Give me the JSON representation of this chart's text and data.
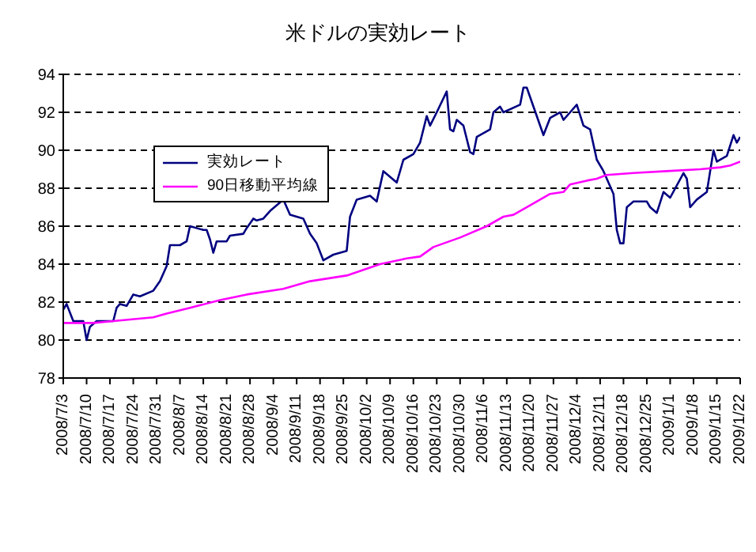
{
  "chart_data": {
    "type": "line",
    "title": "米ドルの実効レート",
    "ylim": [
      78,
      94
    ],
    "yticks": [
      78,
      80,
      82,
      84,
      86,
      88,
      90,
      92,
      94
    ],
    "xlim": [
      "2008-07-03",
      "2009-01-22"
    ],
    "xticks": [
      {
        "value": "2008-07-03",
        "label": "2008/7/3"
      },
      {
        "value": "2008-07-10",
        "label": "2008/7/10"
      },
      {
        "value": "2008-07-17",
        "label": "2008/7/17"
      },
      {
        "value": "2008-07-24",
        "label": "2008/7/24"
      },
      {
        "value": "2008-07-31",
        "label": "2008/7/31"
      },
      {
        "value": "2008-08-07",
        "label": "2008/8/7"
      },
      {
        "value": "2008-08-14",
        "label": "2008/8/14"
      },
      {
        "value": "2008-08-21",
        "label": "2008/8/21"
      },
      {
        "value": "2008-08-28",
        "label": "2008/8/28"
      },
      {
        "value": "2008-09-04",
        "label": "2008/9/4"
      },
      {
        "value": "2008-09-11",
        "label": "2008/9/11"
      },
      {
        "value": "2008-09-18",
        "label": "2008/9/18"
      },
      {
        "value": "2008-09-25",
        "label": "2008/9/25"
      },
      {
        "value": "2008-10-02",
        "label": "2008/10/2"
      },
      {
        "value": "2008-10-09",
        "label": "2008/10/9"
      },
      {
        "value": "2008-10-16",
        "label": "2008/10/16"
      },
      {
        "value": "2008-10-23",
        "label": "2008/10/23"
      },
      {
        "value": "2008-10-30",
        "label": "2008/10/30"
      },
      {
        "value": "2008-11-06",
        "label": "2008/11/6"
      },
      {
        "value": "2008-11-13",
        "label": "2008/11/13"
      },
      {
        "value": "2008-11-20",
        "label": "2008/11/20"
      },
      {
        "value": "2008-11-27",
        "label": "2008/11/27"
      },
      {
        "value": "2008-12-04",
        "label": "2008/12/4"
      },
      {
        "value": "2008-12-11",
        "label": "2008/12/11"
      },
      {
        "value": "2008-12-18",
        "label": "2008/12/18"
      },
      {
        "value": "2008-12-25",
        "label": "2008/12/25"
      },
      {
        "value": "2009-01-01",
        "label": "2009/1/1"
      },
      {
        "value": "2009-01-08",
        "label": "2009/1/8"
      },
      {
        "value": "2009-01-15",
        "label": "2009/1/15"
      },
      {
        "value": "2009-01-22",
        "label": "2009/1/22"
      }
    ],
    "grid": "y",
    "legend": "top left",
    "marker": "none",
    "line_style": "solid",
    "series": [
      {
        "name": "実効レート",
        "color": "#000080",
        "x": [
          "2008-07-03",
          "2008-07-04",
          "2008-07-06",
          "2008-07-09",
          "2008-07-10",
          "2008-07-11",
          "2008-07-13",
          "2008-07-18",
          "2008-07-19",
          "2008-07-20",
          "2008-07-22",
          "2008-07-24",
          "2008-07-26",
          "2008-07-30",
          "2008-08-01",
          "2008-08-03",
          "2008-08-04",
          "2008-08-07",
          "2008-08-09",
          "2008-08-10",
          "2008-08-14",
          "2008-08-15",
          "2008-08-16",
          "2008-08-17",
          "2008-08-18",
          "2008-08-21",
          "2008-08-22",
          "2008-08-26",
          "2008-08-27",
          "2008-08-29",
          "2008-08-30",
          "2008-09-01",
          "2008-09-03",
          "2008-09-07",
          "2008-09-09",
          "2008-09-13",
          "2008-09-15",
          "2008-09-17",
          "2008-09-19",
          "2008-09-22",
          "2008-09-26",
          "2008-09-27",
          "2008-09-29",
          "2008-10-03",
          "2008-10-05",
          "2008-10-07",
          "2008-10-11",
          "2008-10-13",
          "2008-10-16",
          "2008-10-18",
          "2008-10-20",
          "2008-10-21",
          "2008-10-23",
          "2008-10-26",
          "2008-10-27",
          "2008-10-28",
          "2008-10-29",
          "2008-10-31",
          "2008-11-02",
          "2008-11-03",
          "2008-11-04",
          "2008-11-08",
          "2008-11-09",
          "2008-11-11",
          "2008-11-12",
          "2008-11-17",
          "2008-11-18",
          "2008-11-19",
          "2008-11-21",
          "2008-11-24",
          "2008-11-26",
          "2008-11-29",
          "2008-11-30",
          "2008-12-02",
          "2008-12-04",
          "2008-12-06",
          "2008-12-08",
          "2008-12-10",
          "2008-12-12",
          "2008-12-15",
          "2008-12-16",
          "2008-12-17",
          "2008-12-18",
          "2008-12-19",
          "2008-12-21",
          "2008-12-25",
          "2008-12-26",
          "2008-12-28",
          "2008-12-30",
          "2009-01-01",
          "2009-01-05",
          "2009-01-06",
          "2009-01-07",
          "2009-01-09",
          "2009-01-12",
          "2009-01-13",
          "2009-01-14",
          "2009-01-15",
          "2009-01-18",
          "2009-01-20",
          "2009-01-21",
          "2009-01-22"
        ],
        "values": [
          81.6,
          81.9,
          81.0,
          81.0,
          80.0,
          80.7,
          81.0,
          81.0,
          81.7,
          81.9,
          81.8,
          82.4,
          82.3,
          82.6,
          83.1,
          83.9,
          85.0,
          85.0,
          85.2,
          86.0,
          85.8,
          85.8,
          85.3,
          84.6,
          85.2,
          85.2,
          85.5,
          85.6,
          85.9,
          86.4,
          86.3,
          86.4,
          86.8,
          87.4,
          86.6,
          86.4,
          85.6,
          85.1,
          84.2,
          84.5,
          84.7,
          86.5,
          87.4,
          87.6,
          87.3,
          88.9,
          88.3,
          89.5,
          89.8,
          90.4,
          91.8,
          91.3,
          92.0,
          93.1,
          91.1,
          91.0,
          91.6,
          91.3,
          89.9,
          89.8,
          90.7,
          91.1,
          92.0,
          92.3,
          92.0,
          92.4,
          93.3,
          93.3,
          92.3,
          90.8,
          91.7,
          92.0,
          91.6,
          92.0,
          92.4,
          91.3,
          91.1,
          89.5,
          88.9,
          87.7,
          85.8,
          85.1,
          85.1,
          87.0,
          87.3,
          87.3,
          87.0,
          86.7,
          87.8,
          87.5,
          88.8,
          88.5,
          87.0,
          87.4,
          87.8,
          88.9,
          90.0,
          89.4,
          89.7,
          90.8,
          90.4,
          90.7
        ]
      },
      {
        "name": "90日移動平均線",
        "color": "#ff00ff",
        "x": [
          "2008-07-03",
          "2008-07-12",
          "2008-07-18",
          "2008-07-30",
          "2008-08-03",
          "2008-08-10",
          "2008-08-19",
          "2008-08-27",
          "2008-09-07",
          "2008-09-15",
          "2008-09-26",
          "2008-10-06",
          "2008-10-14",
          "2008-10-18",
          "2008-10-22",
          "2008-10-30",
          "2008-11-07",
          "2008-11-12",
          "2008-11-15",
          "2008-11-20",
          "2008-11-26",
          "2008-11-30",
          "2008-12-02",
          "2008-12-07",
          "2008-12-10",
          "2008-12-13",
          "2008-12-21",
          "2008-12-31",
          "2009-01-10",
          "2009-01-16",
          "2009-01-19",
          "2009-01-22"
        ],
        "values": [
          80.9,
          80.9,
          81.0,
          81.2,
          81.4,
          81.7,
          82.1,
          82.4,
          82.7,
          83.1,
          83.4,
          84.0,
          84.3,
          84.4,
          84.9,
          85.4,
          86.0,
          86.5,
          86.6,
          87.1,
          87.7,
          87.8,
          88.2,
          88.4,
          88.5,
          88.7,
          88.8,
          88.9,
          89.0,
          89.1,
          89.2,
          89.4
        ]
      }
    ]
  }
}
